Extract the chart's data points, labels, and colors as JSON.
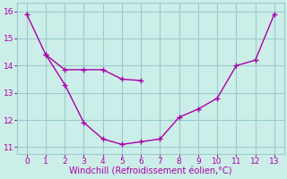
{
  "line1_x": [
    0,
    1,
    2,
    3,
    4,
    5,
    6,
    7,
    8,
    9,
    10,
    11,
    12,
    13
  ],
  "line1_y": [
    15.9,
    14.4,
    13.3,
    11.9,
    11.3,
    11.1,
    11.2,
    11.3,
    12.1,
    12.4,
    12.8,
    14.0,
    14.2,
    15.9
  ],
  "line2_x": [
    1,
    2,
    3,
    4,
    5,
    6
  ],
  "line2_y": [
    14.4,
    13.85,
    13.85,
    13.85,
    13.5,
    13.45
  ],
  "line_color": "#aa00aa",
  "bg_color": "#cceee8",
  "grid_color": "#99cccc",
  "xlabel": "Windchill (Refroidissement éolien,°C)",
  "xlabel_color": "#aa00aa",
  "xlabel_fontsize": 7,
  "tick_color": "#aa00aa",
  "tick_fontsize": 6.5,
  "xlim": [
    -0.5,
    13.5
  ],
  "ylim": [
    10.75,
    16.3
  ],
  "yticks": [
    11,
    12,
    13,
    14,
    15,
    16
  ],
  "xticks": [
    0,
    1,
    2,
    3,
    4,
    5,
    6,
    7,
    8,
    9,
    10,
    11,
    12,
    13
  ],
  "linewidth": 1.0,
  "markersize": 4,
  "markeredgewidth": 1.0
}
